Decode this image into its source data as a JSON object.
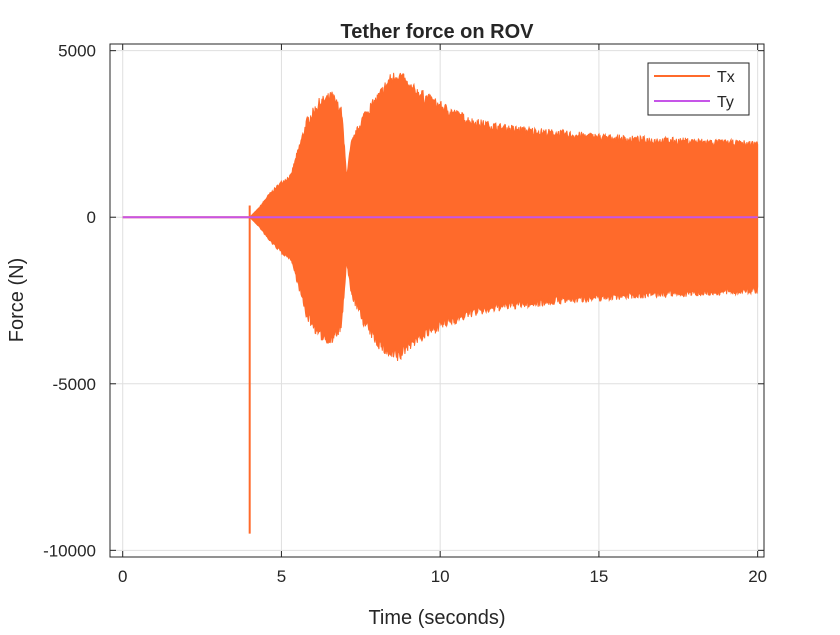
{
  "chart_data": {
    "type": "line",
    "title": "Tether force on ROV",
    "xlabel": "Time (seconds)",
    "ylabel": "Force (N)",
    "xlim": [
      -0.4,
      20.2
    ],
    "ylim": [
      -10200,
      5200
    ],
    "xticks": [
      0,
      5,
      10,
      15,
      20
    ],
    "xtick_labels": [
      "0",
      "5",
      "10",
      "15",
      "20"
    ],
    "yticks": [
      -10000,
      -5000,
      0,
      5000
    ],
    "ytick_labels": [
      "-10000",
      "-5000",
      "0",
      "5000"
    ],
    "grid": true,
    "legend_position": "top-right",
    "series": [
      {
        "name": "Tx",
        "color": "#ff6a2b",
        "spike": {
          "x": 4.0,
          "min": -9500,
          "max": 350
        },
        "envelope": {
          "x": [
            4.0,
            4.3,
            4.6,
            5.0,
            5.3,
            5.5,
            5.8,
            6.2,
            6.6,
            6.9,
            7.05,
            7.2,
            7.6,
            8.0,
            8.4,
            8.7,
            9.0,
            10.0,
            11.0,
            12.0,
            14.0,
            16.0,
            18.0,
            20.0
          ],
          "upper": [
            0,
            300,
            700,
            1100,
            1300,
            2000,
            3000,
            3600,
            3800,
            3300,
            1300,
            2300,
            3200,
            3700,
            4300,
            4500,
            4100,
            3500,
            3000,
            2800,
            2600,
            2450,
            2380,
            2300
          ],
          "lower": [
            0,
            -300,
            -700,
            -1100,
            -1300,
            -2000,
            -3100,
            -3700,
            -3850,
            -3400,
            -1400,
            -2400,
            -3300,
            -3900,
            -4300,
            -4400,
            -4000,
            -3400,
            -3000,
            -2800,
            -2600,
            -2450,
            -2380,
            -2300
          ]
        },
        "baseline": {
          "x": [
            0,
            4.0
          ],
          "value": 0
        }
      },
      {
        "name": "Ty",
        "color": "#c655e8",
        "x": [
          0,
          20
        ],
        "values": [
          0,
          0
        ]
      }
    ]
  }
}
